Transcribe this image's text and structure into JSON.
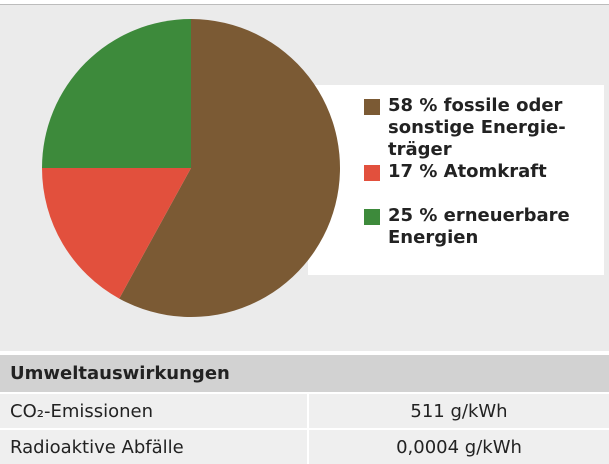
{
  "chart_data": {
    "type": "pie",
    "categories": [
      "fossile oder sonstige Energie­träger",
      "Atomkraft",
      "erneuerbare Energien"
    ],
    "values": [
      58,
      17,
      25
    ],
    "value_labels": [
      "58 %",
      "17 %",
      "25 %"
    ],
    "colors": [
      "#7b5a34",
      "#e2503d",
      "#3d8a3b"
    ]
  },
  "table": {
    "title": "Umweltauswirkungen",
    "rows": [
      [
        "CO₂-Emissionen",
        "511 g/kWh"
      ],
      [
        "Radioaktive Abfälle",
        "0,0004 g/kWh"
      ]
    ]
  }
}
